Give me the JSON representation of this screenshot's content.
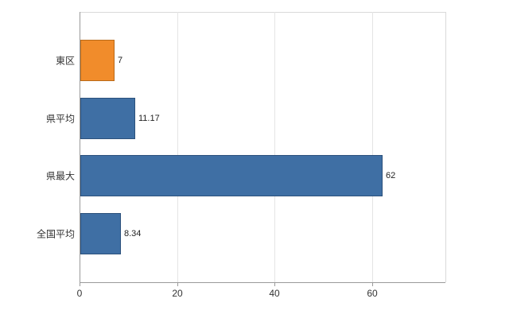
{
  "chart_data": {
    "type": "bar",
    "orientation": "horizontal",
    "title": "",
    "xlabel": "",
    "ylabel": "",
    "categories": [
      "東区",
      "県平均",
      "県最大",
      "全国平均"
    ],
    "values": [
      7,
      11.17,
      62,
      8.34
    ],
    "value_labels": [
      "7",
      "11.17",
      "62",
      "8.34"
    ],
    "series": [
      {
        "name": "value",
        "values": [
          7,
          11.17,
          62,
          8.34
        ]
      }
    ],
    "bar_colors": [
      "#f18c2b",
      "#3f6fa4",
      "#3f6fa4",
      "#3f6fa4"
    ],
    "bar_border_colors": [
      "#b96a19",
      "#2c517c",
      "#2c517c",
      "#2c517c"
    ],
    "xlim": [
      0,
      75
    ],
    "xticks": [
      0,
      20,
      40,
      60
    ],
    "xtick_labels": [
      "0",
      "20",
      "40",
      "60"
    ],
    "grid": true,
    "legend": "none",
    "background_color": "#ffffff",
    "gridline_color": "#e4e4e4",
    "axis_color": "#9a9a9a"
  }
}
